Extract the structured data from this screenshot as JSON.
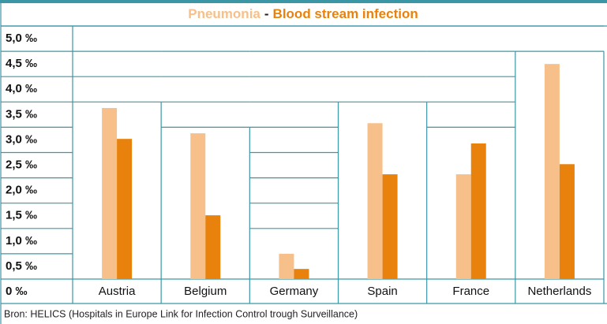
{
  "chart_data": {
    "type": "bar",
    "title_separator": "-",
    "categories": [
      "Austria",
      "Belgium",
      "Germany",
      "Spain",
      "France",
      "Netherlands"
    ],
    "series": [
      {
        "name": "Pneumonia",
        "color": "#f7c08a",
        "values": [
          3.38,
          2.88,
          0.5,
          3.08,
          2.07,
          4.25
        ]
      },
      {
        "name": "Blood stream infection",
        "color": "#e8820c",
        "values": [
          2.77,
          1.26,
          0.2,
          2.07,
          2.68,
          2.27
        ]
      }
    ],
    "ylim": [
      0,
      5
    ],
    "yticks": [
      {
        "value": 0,
        "label": "0 ‰"
      },
      {
        "value": 0.5,
        "label": "0,5 ‰"
      },
      {
        "value": 1,
        "label": "1,0 ‰"
      },
      {
        "value": 1.5,
        "label": "1,5 ‰"
      },
      {
        "value": 2,
        "label": "2,0 ‰"
      },
      {
        "value": 2.5,
        "label": "2,5 ‰"
      },
      {
        "value": 3,
        "label": "3,0 ‰"
      },
      {
        "value": 3.5,
        "label": "3,5 ‰"
      },
      {
        "value": 4,
        "label": "4,0 ‰"
      },
      {
        "value": 4.5,
        "label": "4,5 ‰"
      },
      {
        "value": 5,
        "label": "5,0 ‰"
      }
    ],
    "grid": true,
    "source": "Bron: HELICS (Hospitals in Europe Link for Infection Control trough Surveillance)"
  }
}
